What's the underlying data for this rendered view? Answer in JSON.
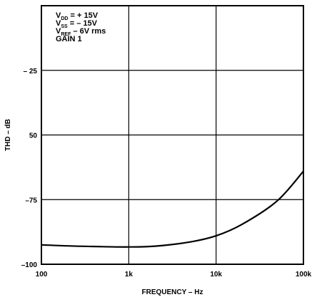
{
  "chart_data": {
    "type": "line",
    "xlabel": "FREQUENCY – Hz",
    "ylabel": "THD – dB",
    "x_scale": "log",
    "xlim": [
      100,
      100000
    ],
    "ylim": [
      -100,
      0
    ],
    "grid": true,
    "x_ticks": [
      {
        "value": 100,
        "label": "100"
      },
      {
        "value": 1000,
        "label": "1k"
      },
      {
        "value": 10000,
        "label": "10k"
      },
      {
        "value": 100000,
        "label": "100k"
      }
    ],
    "y_ticks": [
      {
        "value": -25,
        "label": "– 25"
      },
      {
        "value": -50,
        "label": "50"
      },
      {
        "value": -75,
        "label": "–75"
      },
      {
        "value": -100,
        "label": "–100"
      }
    ],
    "annotations": [
      {
        "main": "V",
        "sub": "DD",
        "rest": " = + 15V"
      },
      {
        "main": "V",
        "sub": "SS",
        "rest": " = – 15V"
      },
      {
        "main": "V",
        "sub": "REF",
        "rest": " – 6V rms"
      },
      {
        "main": "GAIN",
        "sub": "",
        "rest": "     1"
      }
    ],
    "series": [
      {
        "x": [
          100,
          200,
          500,
          1000,
          2000,
          5000,
          10000,
          20000,
          50000,
          100000
        ],
        "y": [
          -92.5,
          -92.9,
          -93.2,
          -93.3,
          -93,
          -91.4,
          -89,
          -84.5,
          -75.5,
          -64
        ]
      }
    ]
  }
}
